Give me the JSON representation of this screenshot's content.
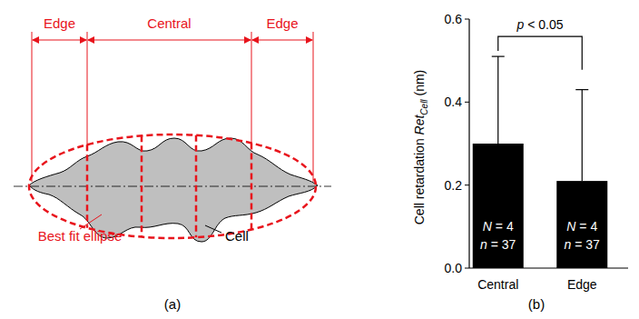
{
  "chart_data": {
    "type": "bar",
    "panel_label": "(b)",
    "y_label": "Cell retardation",
    "y_label_symbol": "Ret",
    "y_label_subscript": "Cell",
    "y_label_unit": "(nm)",
    "categories": [
      "Central",
      "Edge"
    ],
    "values": [
      0.3,
      0.21
    ],
    "errors": [
      0.21,
      0.22
    ],
    "color": "#000000",
    "ylim": [
      0,
      0.6
    ],
    "yticks": [
      {
        "value": 0,
        "label": "0.0"
      },
      0.2,
      0.4,
      0.6
    ],
    "grid": false,
    "annotations": {
      "significance": "p < 0.05",
      "bars": [
        [
          "N = 4",
          "n = 37"
        ],
        [
          "N = 4",
          "n = 37"
        ]
      ]
    }
  },
  "diagram": {
    "panel_label": "(a)",
    "regions": [
      "Edge",
      "Central",
      "Edge"
    ],
    "ellipse_label": "Best fit ellipse",
    "cell_label": "Cell"
  }
}
